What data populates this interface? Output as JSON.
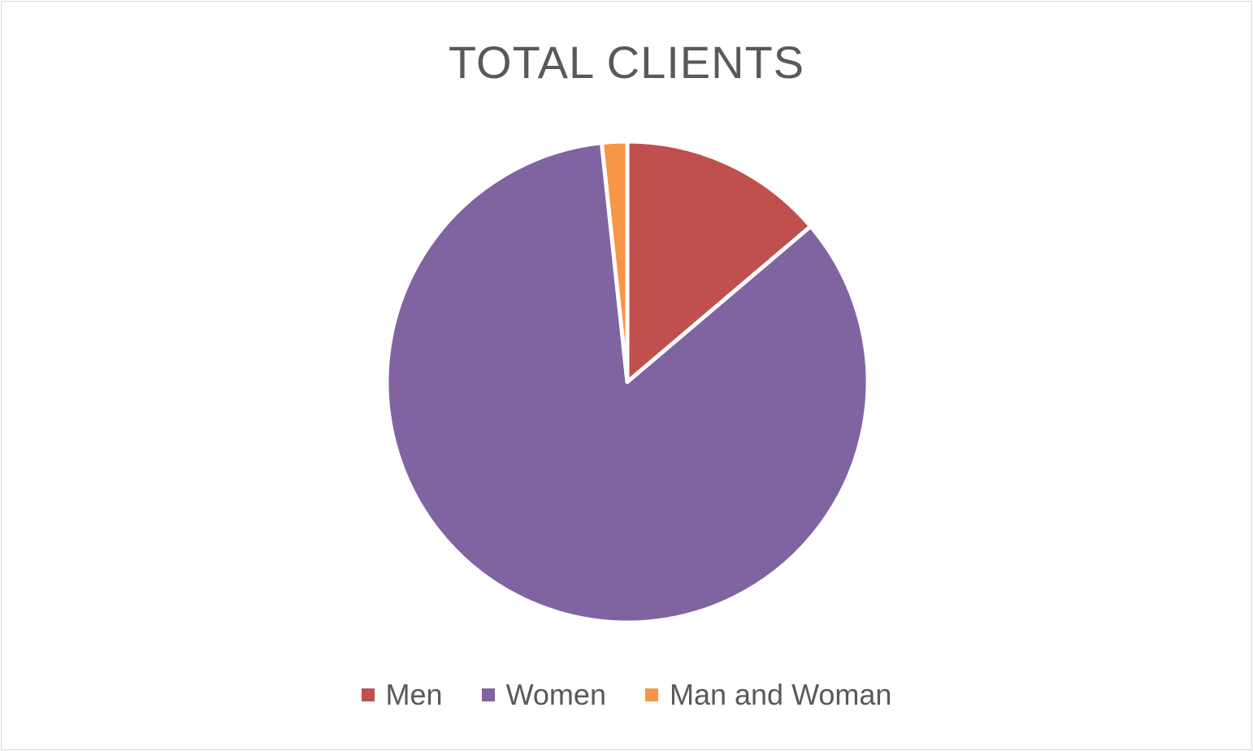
{
  "chart_data": {
    "type": "pie",
    "title": "TOTAL CLIENTS",
    "categories": [
      "Men",
      "Women",
      "Man and Woman"
    ],
    "values": [
      13.8,
      84.5,
      1.7
    ],
    "colors": [
      "#c0504d",
      "#8064a2",
      "#f79646"
    ],
    "start_angle_deg": 0,
    "direction": "clockwise",
    "legend_position": "bottom",
    "slice_border_color": "#ffffff"
  }
}
